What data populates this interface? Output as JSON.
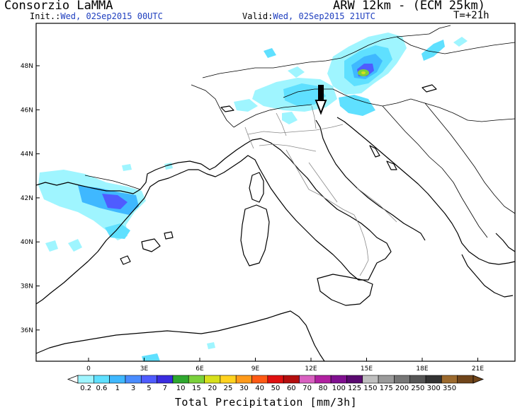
{
  "header": {
    "source": "Consorzio LaMMA",
    "model": "ARW 12km - (ECM 25km)",
    "init_label": "Init.:",
    "init_value": "Wed, 02Sep2015 00UTC",
    "valid_label": "Valid:",
    "valid_value": "Wed, 02Sep2015 21UTC",
    "forecast_step": "T=+21h"
  },
  "map": {
    "lat_labels": [
      "48N",
      "46N",
      "44N",
      "42N",
      "40N",
      "38N",
      "36N"
    ],
    "lon_labels": [
      "0",
      "3E",
      "6E",
      "9E",
      "12E",
      "15E",
      "18E",
      "21E"
    ]
  },
  "colorbar": {
    "title": "Total Precipitation [mm/3h]",
    "levels": [
      "0.2",
      "0.6",
      "1",
      "3",
      "5",
      "7",
      "10",
      "15",
      "20",
      "25",
      "30",
      "40",
      "50",
      "60",
      "70",
      "80",
      "100",
      "125",
      "150",
      "175",
      "200",
      "250",
      "300",
      "350"
    ],
    "colors": [
      "#9ff5ff",
      "#5fe0ff",
      "#3fb8ff",
      "#4a8cff",
      "#4f5cff",
      "#3a2ce0",
      "#2fa82f",
      "#7ad13c",
      "#d7e01c",
      "#ffd21f",
      "#ff9a1a",
      "#ff5a14",
      "#e01010",
      "#b40e0e",
      "#d860c0",
      "#b020a0",
      "#801090",
      "#5a0a70",
      "#bfbfbf",
      "#9a9a9a",
      "#767676",
      "#555555",
      "#333333",
      "#9c6a2e",
      "#70451a"
    ]
  }
}
